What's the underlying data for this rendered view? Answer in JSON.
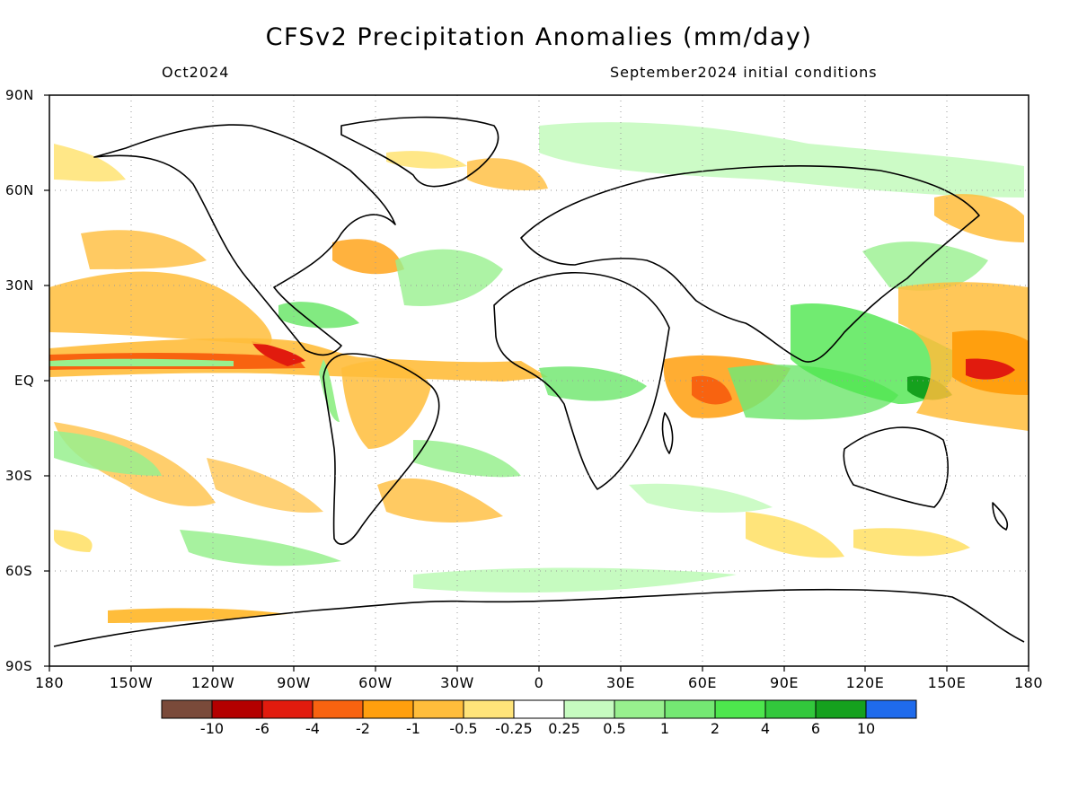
{
  "title": "CFSv2 Precipitation Anomalies (mm/day)",
  "valid_month": "Oct2024",
  "init_conditions": "September2024 initial conditions",
  "map": {
    "lat_labels": [
      "90N",
      "60N",
      "30N",
      "EQ",
      "30S",
      "60S",
      "90S"
    ],
    "lon_labels": [
      "180",
      "150W",
      "120W",
      "90W",
      "60W",
      "30W",
      "0",
      "30E",
      "60E",
      "90E",
      "120E",
      "150E",
      "180"
    ],
    "lon_range": [
      -180,
      180
    ],
    "lat_range": [
      -90,
      90
    ],
    "grid": "dotted"
  },
  "colorbar": {
    "colors": [
      "#7a4a3a",
      "#b40000",
      "#e11b0e",
      "#f86310",
      "#ff9f0e",
      "#ffbd3b",
      "#ffe47a",
      "#ffffff",
      "#c6fbc0",
      "#98f08e",
      "#74e873",
      "#4de64d",
      "#32c83c",
      "#15a11e",
      "#1f6bec"
    ],
    "labels": [
      "-10",
      "-6",
      "-4",
      "-2",
      "-1",
      "-0.5",
      "-0.25",
      "0.25",
      "0.5",
      "1",
      "2",
      "4",
      "6",
      "10"
    ]
  }
}
